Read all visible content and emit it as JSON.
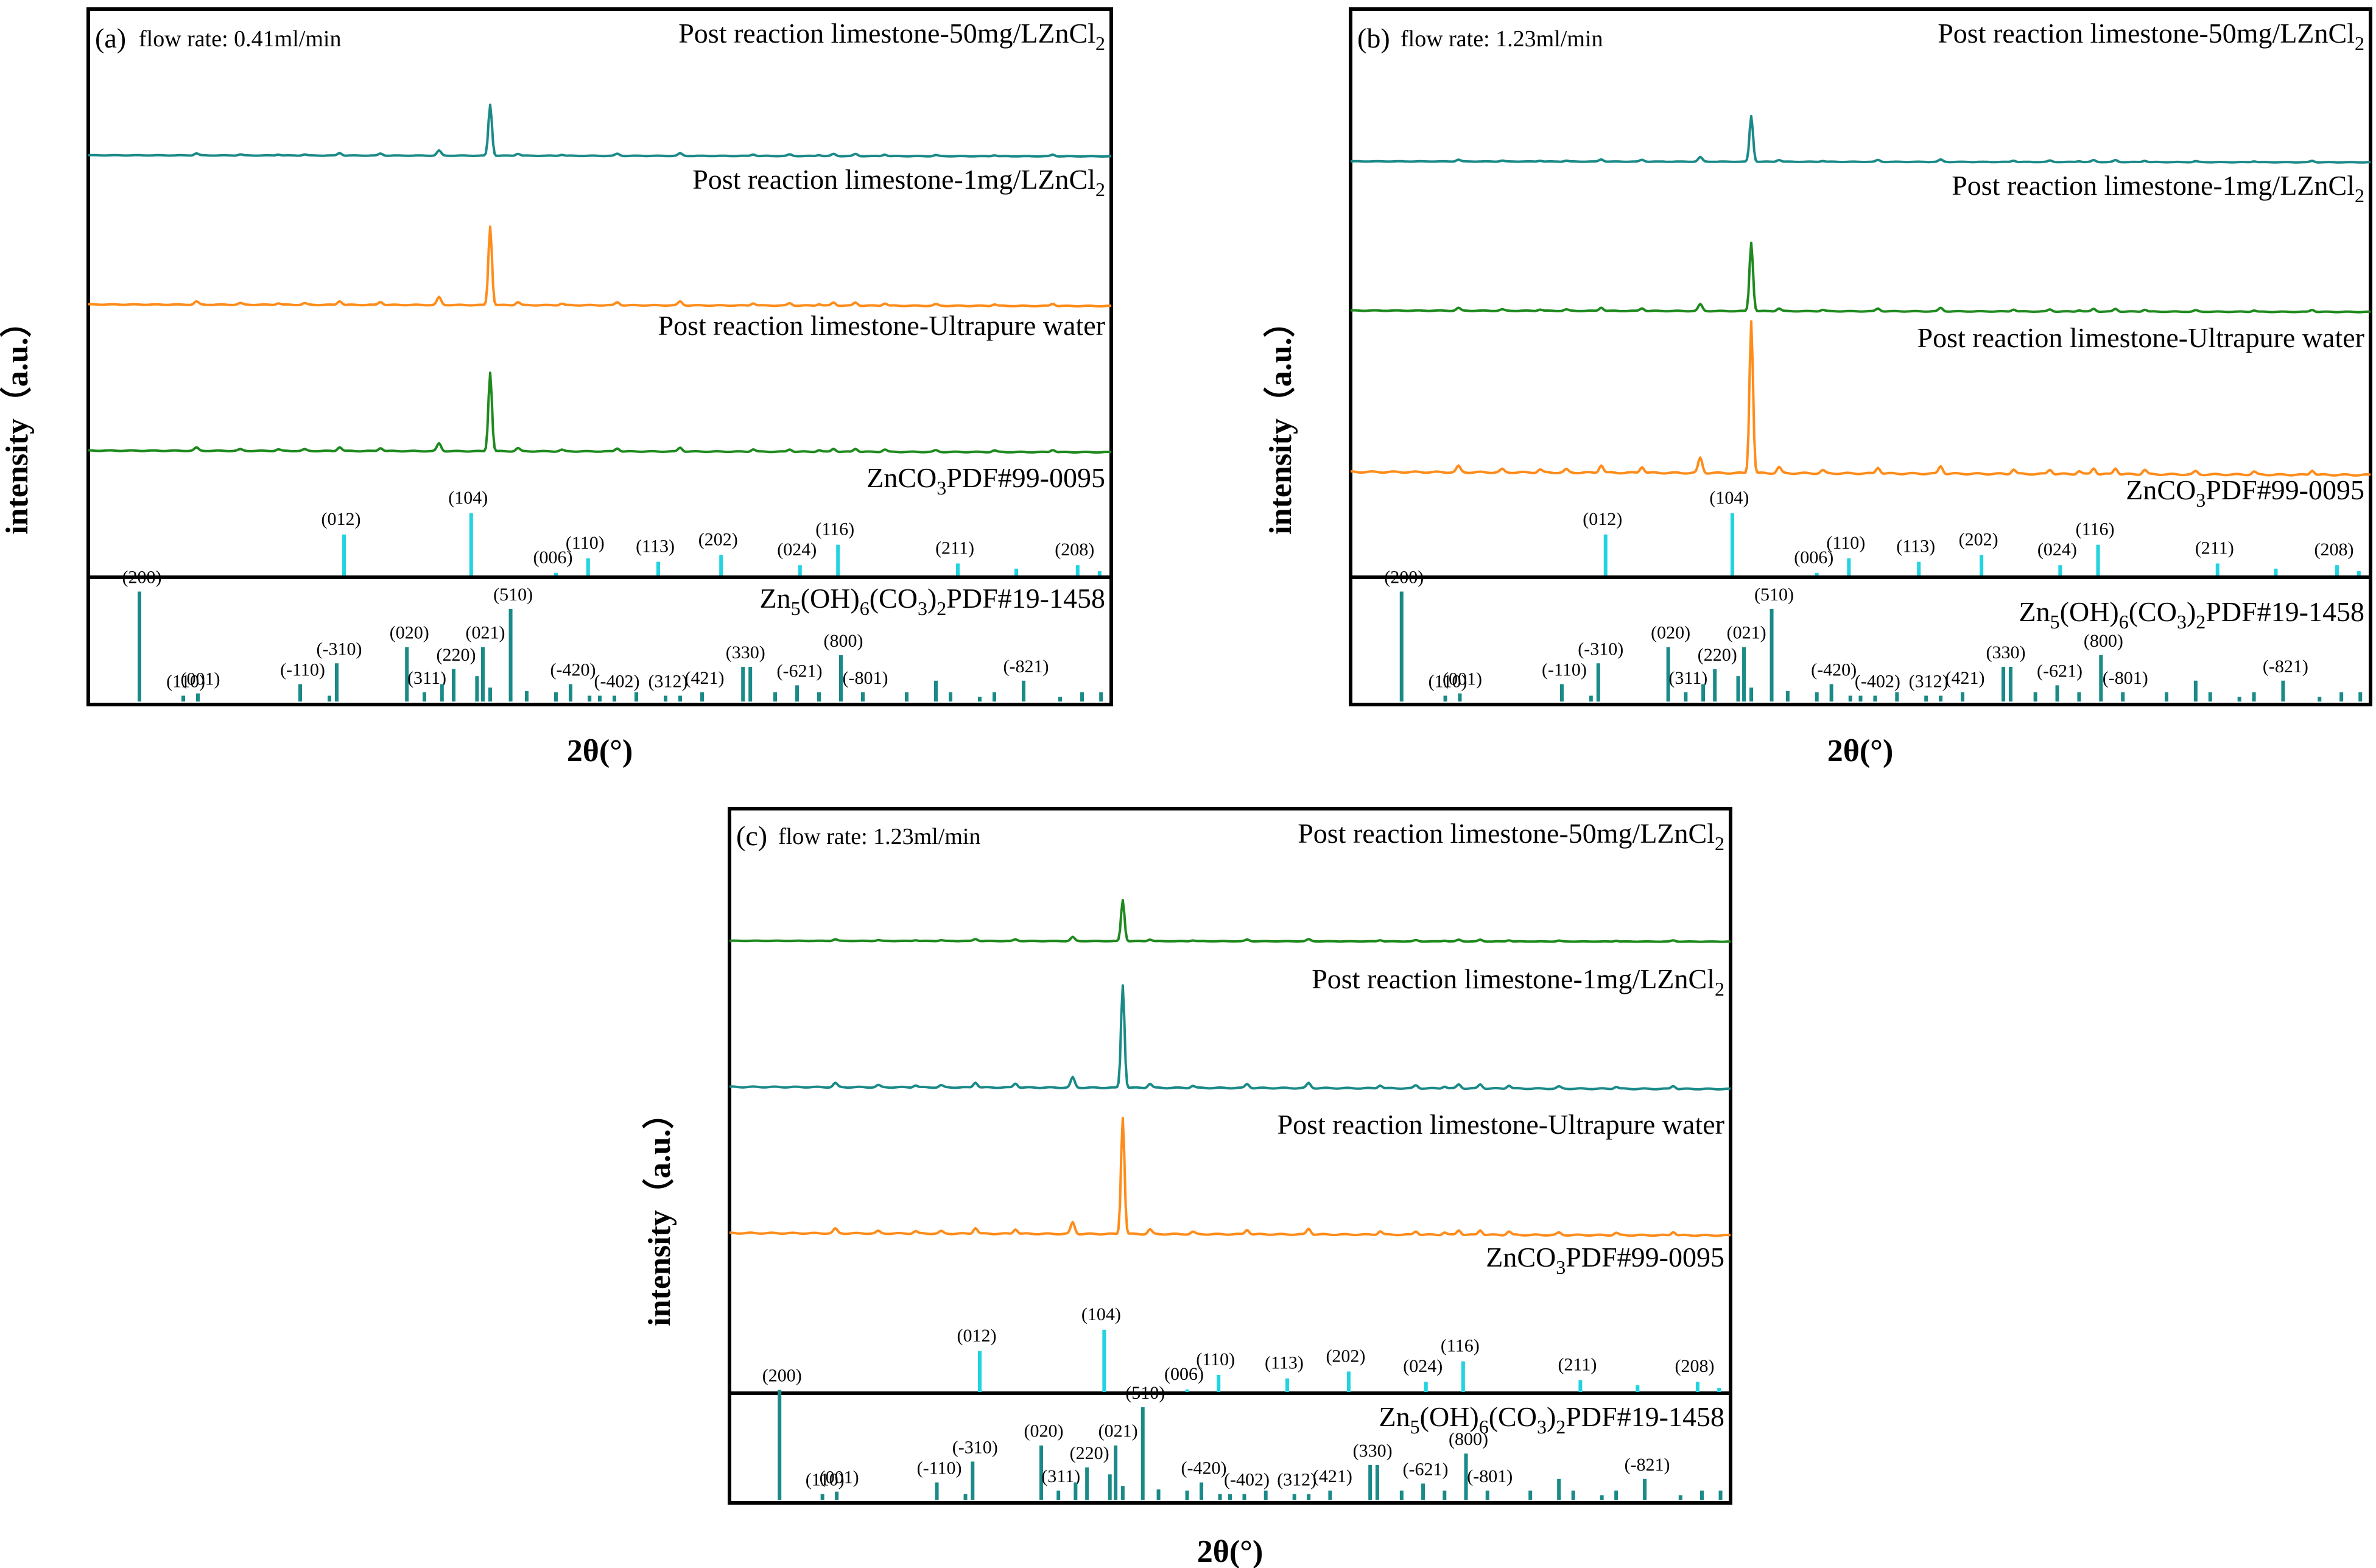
{
  "colors": {
    "teal": "#1a8a88",
    "orange": "#ff8c1a",
    "green": "#1e8a1e",
    "cyan": "#22d3e0",
    "ref2": "#1a8a88"
  },
  "chart_data": [
    {
      "type": "line",
      "panel_label": "(a)",
      "flow_label": "flow rate: 0.41ml/min",
      "ylabel": "intensity（a.u.）",
      "xlabel": "2θ(°)",
      "x_range": [
        10,
        80
      ],
      "series": [
        {
          "name": "Post reaction limestone-50mg/LZnCl2",
          "label_main": "Post reaction limestone-50mg/LZnCl",
          "label_sub": "2",
          "color": "#1a8a88",
          "peak_scale": 0.55
        },
        {
          "name": "Post reaction limestone-1mg/LZnCl2",
          "label_main": "Post reaction limestone-1mg/LZnCl",
          "label_sub": "2",
          "color": "#ff8c1a",
          "peak_scale": 0.85
        },
        {
          "name": "Post reaction limestone-Ultrapure water",
          "label_main": "Post reaction limestone-Ultrapure water",
          "label_sub": "",
          "color": "#1e8a1e",
          "peak_scale": 0.85
        }
      ]
    },
    {
      "type": "line",
      "panel_label": "(b)",
      "flow_label": "flow rate: 1.23ml/min",
      "ylabel": "intensity（a.u.）",
      "xlabel": "2θ(°)",
      "x_range": [
        10,
        80
      ],
      "series": [
        {
          "name": "Post reaction limestone-50mg/LZnCl2",
          "label_main": "Post reaction limestone-50mg/LZnCl",
          "label_sub": "2",
          "color": "#1a8a88",
          "peak_scale": 0.3
        },
        {
          "name": "Post reaction limestone-1mg/LZnCl2",
          "label_main": "Post reaction limestone-1mg/LZnCl",
          "label_sub": "2",
          "color": "#1e8a1e",
          "peak_scale": 0.45
        },
        {
          "name": "Post reaction limestone-Ultrapure water",
          "label_main": "Post reaction limestone-Ultrapure water",
          "label_sub": "",
          "color": "#ff8c1a",
          "peak_scale": 1.0
        }
      ]
    },
    {
      "type": "line",
      "panel_label": "(c)",
      "flow_label": "flow rate: 1.23ml/min",
      "ylabel": "intensity（a.u.）",
      "xlabel": "2θ(°)",
      "x_range": [
        10,
        80
      ],
      "series": [
        {
          "name": "Post reaction limestone-50mg/LZnCl2",
          "label_main": "Post reaction limestone-50mg/LZnCl",
          "label_sub": "2",
          "color": "#1e8a1e",
          "peak_scale": 0.3
        },
        {
          "name": "Post reaction limestone-1mg/LZnCl2",
          "label_main": "Post reaction limestone-1mg/LZnCl",
          "label_sub": "2",
          "color": "#1a8a88",
          "peak_scale": 0.75
        },
        {
          "name": "Post reaction limestone-Ultrapure water",
          "label_main": "Post reaction limestone-Ultrapure water",
          "label_sub": "",
          "color": "#ff8c1a",
          "peak_scale": 0.85
        }
      ]
    }
  ],
  "peaks": [
    {
      "x": 17.4,
      "h": 0.04
    },
    {
      "x": 20.4,
      "h": 0.02
    },
    {
      "x": 23.0,
      "h": 0.02
    },
    {
      "x": 24.8,
      "h": 0.02
    },
    {
      "x": 27.2,
      "h": 0.05
    },
    {
      "x": 30.0,
      "h": 0.04
    },
    {
      "x": 34.0,
      "h": 0.1
    },
    {
      "x": 37.5,
      "h": 1.0
    },
    {
      "x": 39.4,
      "h": 0.04
    },
    {
      "x": 42.4,
      "h": 0.02
    },
    {
      "x": 46.2,
      "h": 0.04
    },
    {
      "x": 50.5,
      "h": 0.05
    },
    {
      "x": 55.5,
      "h": 0.03
    },
    {
      "x": 58.0,
      "h": 0.03
    },
    {
      "x": 60.0,
      "h": 0.02
    },
    {
      "x": 61.0,
      "h": 0.04
    },
    {
      "x": 62.5,
      "h": 0.04
    },
    {
      "x": 64.5,
      "h": 0.03
    },
    {
      "x": 68.0,
      "h": 0.02
    },
    {
      "x": 72.0,
      "h": 0.02
    },
    {
      "x": 76.0,
      "h": 0.03
    }
  ],
  "ref1": {
    "name": "ZnCO3PDF#99-0095",
    "label_pre": "ZnCO",
    "label_sub": "3",
    "label_post": "PDF#99-0095",
    "lines": [
      {
        "x": 27.5,
        "h": 0.48,
        "label": "(012)"
      },
      {
        "x": 36.2,
        "h": 0.73,
        "label": "(104)"
      },
      {
        "x": 42.0,
        "h": 0.03,
        "label": "(006)"
      },
      {
        "x": 44.2,
        "h": 0.2,
        "label": "(110)"
      },
      {
        "x": 49.0,
        "h": 0.16,
        "label": "(113)"
      },
      {
        "x": 53.3,
        "h": 0.24,
        "label": "(202)"
      },
      {
        "x": 58.7,
        "h": 0.12,
        "label": "(024)"
      },
      {
        "x": 61.3,
        "h": 0.36,
        "label": "(116)"
      },
      {
        "x": 69.5,
        "h": 0.14,
        "label": "(211)"
      },
      {
        "x": 73.5,
        "h": 0.08,
        "label": ""
      },
      {
        "x": 77.7,
        "h": 0.12,
        "label": "(208)"
      },
      {
        "x": 79.2,
        "h": 0.05,
        "label": ""
      }
    ]
  },
  "ref2": {
    "name": "Zn5(OH)6(CO3)2PDF#19-1458",
    "label_a": "Zn",
    "sub_a": "5",
    "label_b": "(OH)",
    "sub_b": "6",
    "label_c": "(CO",
    "sub_c": "3",
    "label_d": ")",
    "sub_d": "2",
    "label_e": "PDF#19-1458",
    "lines": [
      {
        "x": 13.5,
        "h": 0.95,
        "label": "(200)"
      },
      {
        "x": 16.5,
        "h": 0.05,
        "label": "(110)"
      },
      {
        "x": 17.5,
        "h": 0.07,
        "label": "(001)"
      },
      {
        "x": 24.5,
        "h": 0.15,
        "label": "(-110)"
      },
      {
        "x": 26.5,
        "h": 0.05,
        "label": ""
      },
      {
        "x": 27.0,
        "h": 0.33,
        "label": "(-310)"
      },
      {
        "x": 31.8,
        "h": 0.47,
        "label": "(020)"
      },
      {
        "x": 33.0,
        "h": 0.08,
        "label": "(311)"
      },
      {
        "x": 34.2,
        "h": 0.15,
        "label": ""
      },
      {
        "x": 35.0,
        "h": 0.28,
        "label": "(220)"
      },
      {
        "x": 36.6,
        "h": 0.22,
        "label": ""
      },
      {
        "x": 37.0,
        "h": 0.47,
        "label": "(021)"
      },
      {
        "x": 37.5,
        "h": 0.12,
        "label": ""
      },
      {
        "x": 38.9,
        "h": 0.8,
        "label": "(510)"
      },
      {
        "x": 40.0,
        "h": 0.09,
        "label": ""
      },
      {
        "x": 42.0,
        "h": 0.08,
        "label": ""
      },
      {
        "x": 43.0,
        "h": 0.15,
        "label": "(-420)"
      },
      {
        "x": 44.3,
        "h": 0.05,
        "label": ""
      },
      {
        "x": 45.0,
        "h": 0.05,
        "label": ""
      },
      {
        "x": 46.0,
        "h": 0.05,
        "label": "(-402)"
      },
      {
        "x": 47.5,
        "h": 0.08,
        "label": ""
      },
      {
        "x": 49.5,
        "h": 0.05,
        "label": "(312)"
      },
      {
        "x": 50.5,
        "h": 0.05,
        "label": ""
      },
      {
        "x": 52.0,
        "h": 0.08,
        "label": "(421)"
      },
      {
        "x": 54.8,
        "h": 0.3,
        "label": "(330)"
      },
      {
        "x": 55.3,
        "h": 0.3,
        "label": ""
      },
      {
        "x": 57.0,
        "h": 0.08,
        "label": ""
      },
      {
        "x": 58.5,
        "h": 0.14,
        "label": "(-621)"
      },
      {
        "x": 60.0,
        "h": 0.08,
        "label": ""
      },
      {
        "x": 61.5,
        "h": 0.4,
        "label": "(800)"
      },
      {
        "x": 63.0,
        "h": 0.08,
        "label": "(-801)"
      },
      {
        "x": 66.0,
        "h": 0.08,
        "label": ""
      },
      {
        "x": 68.0,
        "h": 0.18,
        "label": ""
      },
      {
        "x": 69.0,
        "h": 0.08,
        "label": ""
      },
      {
        "x": 71.0,
        "h": 0.04,
        "label": ""
      },
      {
        "x": 72.0,
        "h": 0.08,
        "label": ""
      },
      {
        "x": 74.0,
        "h": 0.18,
        "label": "(-821)"
      },
      {
        "x": 76.5,
        "h": 0.04,
        "label": ""
      },
      {
        "x": 78.0,
        "h": 0.08,
        "label": ""
      },
      {
        "x": 79.3,
        "h": 0.08,
        "label": ""
      }
    ]
  }
}
